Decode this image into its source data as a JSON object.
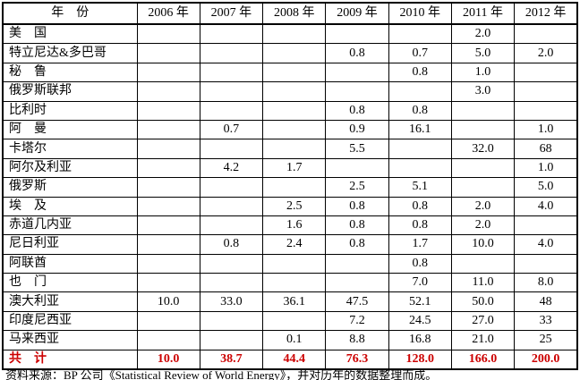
{
  "page": {
    "background": "#ffffff"
  },
  "table": {
    "accent_color": "#cc0000",
    "header": [
      "年　份",
      "2006 年",
      "2007 年",
      "2008 年",
      "2009 年",
      "2010 年",
      "2011 年",
      "2012 年"
    ],
    "rows": [
      {
        "label": "美　国",
        "values": [
          "",
          "",
          "",
          "",
          "",
          "2.0",
          ""
        ]
      },
      {
        "label": "特立尼达&多巴哥",
        "values": [
          "",
          "",
          "",
          "0.8",
          "0.7",
          "5.0",
          "2.0"
        ]
      },
      {
        "label": "秘　鲁",
        "values": [
          "",
          "",
          "",
          "",
          "0.8",
          "1.0",
          ""
        ]
      },
      {
        "label": "俄罗斯联邦",
        "values": [
          "",
          "",
          "",
          "",
          "",
          "3.0",
          ""
        ]
      },
      {
        "label": "比利时",
        "values": [
          "",
          "",
          "",
          "0.8",
          "0.8",
          "",
          ""
        ]
      },
      {
        "label": "阿　曼",
        "values": [
          "",
          "0.7",
          "",
          "0.9",
          "16.1",
          "",
          "1.0"
        ]
      },
      {
        "label": "卡塔尔",
        "values": [
          "",
          "",
          "",
          "5.5",
          "",
          "32.0",
          "68"
        ]
      },
      {
        "label": "阿尔及利亚",
        "values": [
          "",
          "4.2",
          "1.7",
          "",
          "",
          "",
          "1.0"
        ]
      },
      {
        "label": "俄罗斯",
        "values": [
          "",
          "",
          "",
          "2.5",
          "5.1",
          "",
          "5.0"
        ]
      },
      {
        "label": "埃　及",
        "values": [
          "",
          "",
          "2.5",
          "0.8",
          "0.8",
          "2.0",
          "4.0"
        ]
      },
      {
        "label": "赤道几内亚",
        "values": [
          "",
          "",
          "1.6",
          "0.8",
          "0.8",
          "2.0",
          ""
        ]
      },
      {
        "label": "尼日利亚",
        "values": [
          "",
          "0.8",
          "2.4",
          "0.8",
          "1.7",
          "10.0",
          "4.0"
        ]
      },
      {
        "label": "阿联酋",
        "values": [
          "",
          "",
          "",
          "",
          "0.8",
          "",
          ""
        ]
      },
      {
        "label": "也　门",
        "values": [
          "",
          "",
          "",
          "",
          "7.0",
          "11.0",
          "8.0"
        ]
      },
      {
        "label": "澳大利亚",
        "values": [
          "10.0",
          "33.0",
          "36.1",
          "47.5",
          "52.1",
          "50.0",
          "48"
        ]
      },
      {
        "label": "印度尼西亚",
        "values": [
          "",
          "",
          "",
          "7.2",
          "24.5",
          "27.0",
          "33"
        ]
      },
      {
        "label": "马来西亚",
        "values": [
          "",
          "",
          "0.1",
          "8.8",
          "16.8",
          "21.0",
          "25"
        ]
      },
      {
        "label": "共　计",
        "values": [
          "10.0",
          "38.7",
          "44.4",
          "76.3",
          "128.0",
          "166.0",
          "200.0"
        ],
        "is_total": true
      }
    ]
  },
  "footer": {
    "text": "资料来源：BP 公司《Statistical Review of World Energy》，并对历年的数据整理而成。"
  }
}
